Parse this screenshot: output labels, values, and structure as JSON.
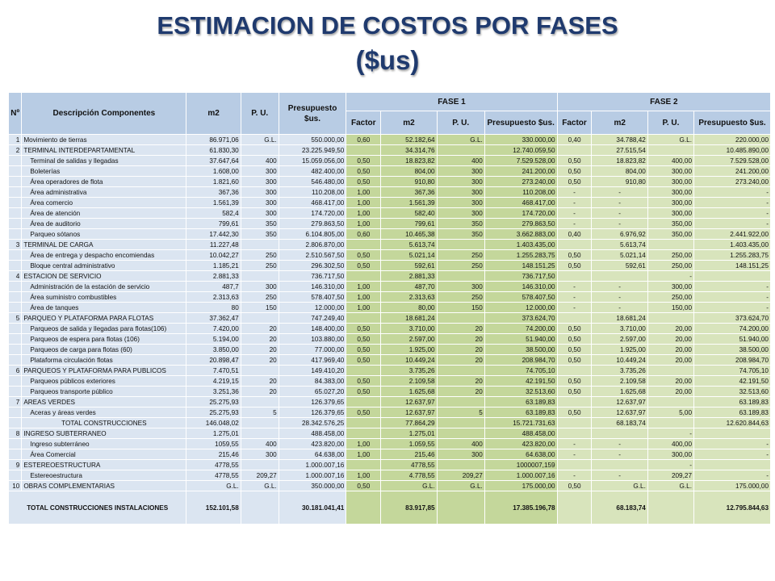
{
  "title": {
    "line1": "ESTIMACION DE COSTOS POR FASES",
    "line2": "($us)"
  },
  "headers": {
    "num": "Nº",
    "desc": "Descripción Componentes",
    "m2": "m2",
    "pu": "P. U.",
    "pres": "Presupuesto $us.",
    "fase1": "FASE 1",
    "fase2": "FASE 2",
    "factor": "Factor"
  },
  "rows": [
    {
      "type": "sect",
      "num": "1",
      "desc": "Movimiento de tierras",
      "m2": "86.971,06",
      "pu": "G.L.",
      "pres": "550.000,00",
      "f1": [
        "0,60",
        "52.182,64",
        "G.L.",
        "330.000,00"
      ],
      "f2": [
        "0,40",
        "34.788,42",
        "G.L.",
        "220.000,00"
      ]
    },
    {
      "type": "sect",
      "num": "2",
      "desc": "TERMINAL INTERDEPARTAMENTAL",
      "m2": "61.830,30",
      "pu": "",
      "pres": "23.225.949,50",
      "f1": [
        "",
        "34.314,76",
        "",
        "12.740.059,50"
      ],
      "f2": [
        "",
        "27.515,54",
        "",
        "10.485.890,00"
      ]
    },
    {
      "type": "sub",
      "num": "",
      "desc": "Terminal de salidas y llegadas",
      "m2": "37.647,64",
      "pu": "400",
      "pres": "15.059.056,00",
      "f1": [
        "0,50",
        "18.823,82",
        "400",
        "7.529.528,00"
      ],
      "f2": [
        "0,50",
        "18.823,82",
        "400,00",
        "7.529.528,00"
      ]
    },
    {
      "type": "sub",
      "num": "",
      "desc": "Boleterías",
      "m2": "1.608,00",
      "pu": "300",
      "pres": "482.400,00",
      "f1": [
        "0,50",
        "804,00",
        "300",
        "241.200,00"
      ],
      "f2": [
        "0,50",
        "804,00",
        "300,00",
        "241.200,00"
      ]
    },
    {
      "type": "sub",
      "num": "",
      "desc": "Área operadores de flota",
      "m2": "1.821,60",
      "pu": "300",
      "pres": "546.480,00",
      "f1": [
        "0,50",
        "910,80",
        "300",
        "273.240,00"
      ],
      "f2": [
        "0,50",
        "910,80",
        "300,00",
        "273.240,00"
      ]
    },
    {
      "type": "sub",
      "num": "",
      "desc": "Área administrativa",
      "m2": "367,36",
      "pu": "300",
      "pres": "110.208,00",
      "f1": [
        "1,00",
        "367,36",
        "300",
        "110.208,00"
      ],
      "f2": [
        "-",
        "-",
        "300,00",
        "-"
      ]
    },
    {
      "type": "sub",
      "num": "",
      "desc": "Área comercio",
      "m2": "1.561,39",
      "pu": "300",
      "pres": "468.417,00",
      "f1": [
        "1,00",
        "1.561,39",
        "300",
        "468.417,00"
      ],
      "f2": [
        "-",
        "-",
        "300,00",
        "-"
      ]
    },
    {
      "type": "sub",
      "num": "",
      "desc": "Área de atención",
      "m2": "582,4",
      "pu": "300",
      "pres": "174.720,00",
      "f1": [
        "1,00",
        "582,40",
        "300",
        "174.720,00"
      ],
      "f2": [
        "-",
        "-",
        "300,00",
        "-"
      ]
    },
    {
      "type": "sub",
      "num": "",
      "desc": "Área de auditorio",
      "m2": "799,61",
      "pu": "350",
      "pres": "279.863,50",
      "f1": [
        "1,00",
        "799,61",
        "350",
        "279.863,50"
      ],
      "f2": [
        "-",
        "-",
        "350,00",
        "-"
      ]
    },
    {
      "type": "sub",
      "num": "",
      "desc": "Parqueo sótanos",
      "m2": "17.442,30",
      "pu": "350",
      "pres": "6.104.805,00",
      "f1": [
        "0,60",
        "10.465,38",
        "350",
        "3.662.883,00"
      ],
      "f2": [
        "0,40",
        "6.976,92",
        "350,00",
        "2.441.922,00"
      ]
    },
    {
      "type": "sect",
      "num": "3",
      "desc": "TERMINAL DE CARGA",
      "m2": "11.227,48",
      "pu": "",
      "pres": "2.806.870,00",
      "f1": [
        "",
        "5.613,74",
        "",
        "1.403.435,00"
      ],
      "f2": [
        "",
        "5.613,74",
        "",
        "1.403.435,00"
      ]
    },
    {
      "type": "sub",
      "num": "",
      "desc": "Área de entrega y despacho encomiendas",
      "m2": "10.042,27",
      "pu": "250",
      "pres": "2.510.567,50",
      "f1": [
        "0,50",
        "5.021,14",
        "250",
        "1.255.283,75"
      ],
      "f2": [
        "0,50",
        "5.021,14",
        "250,00",
        "1.255.283,75"
      ]
    },
    {
      "type": "sub",
      "num": "",
      "desc": "Bloque central administrativo",
      "m2": "1.185,21",
      "pu": "250",
      "pres": "296.302,50",
      "f1": [
        "0,50",
        "592,61",
        "250",
        "148.151,25"
      ],
      "f2": [
        "0,50",
        "592,61",
        "250,00",
        "148.151,25"
      ]
    },
    {
      "type": "sect",
      "num": "4",
      "desc": "ESTACION DE SERVICIO",
      "m2": "2.881,33",
      "pu": "",
      "pres": "736.717,50",
      "f1": [
        "",
        "2.881,33",
        "",
        "736.717,50"
      ],
      "f2": [
        "",
        "",
        "-",
        ""
      ]
    },
    {
      "type": "sub",
      "num": "",
      "desc": "Administración de la estación de servicio",
      "m2": "487,7",
      "pu": "300",
      "pres": "146.310,00",
      "f1": [
        "1,00",
        "487,70",
        "300",
        "146.310,00"
      ],
      "f2": [
        "-",
        "-",
        "300,00",
        "-"
      ]
    },
    {
      "type": "sub",
      "num": "",
      "desc": "Área suministro combustibles",
      "m2": "2.313,63",
      "pu": "250",
      "pres": "578.407,50",
      "f1": [
        "1,00",
        "2.313,63",
        "250",
        "578.407,50"
      ],
      "f2": [
        "-",
        "-",
        "250,00",
        "-"
      ]
    },
    {
      "type": "sub",
      "num": "",
      "desc": "Área de tanques",
      "m2": "80",
      "pu": "150",
      "pres": "12.000,00",
      "f1": [
        "1,00",
        "80,00",
        "150",
        "12.000,00"
      ],
      "f2": [
        "-",
        "-",
        "150,00",
        "-"
      ]
    },
    {
      "type": "sect",
      "num": "5",
      "desc": "PARQUEO Y PLATAFORMA PARA FLOTAS",
      "m2": "37.362,47",
      "pu": "",
      "pres": "747.249,40",
      "f1": [
        "",
        "18.681,24",
        "",
        "373.624,70"
      ],
      "f2": [
        "",
        "18.681,24",
        "",
        "373.624,70"
      ]
    },
    {
      "type": "sub",
      "num": "",
      "desc": "Parqueos de salida y llegadas para flotas(106)",
      "m2": "7.420,00",
      "pu": "20",
      "pres": "148.400,00",
      "f1": [
        "0,50",
        "3.710,00",
        "20",
        "74.200,00"
      ],
      "f2": [
        "0,50",
        "3.710,00",
        "20,00",
        "74.200,00"
      ]
    },
    {
      "type": "sub",
      "num": "",
      "desc": "Parqueos de espera para flotas (106)",
      "m2": "5.194,00",
      "pu": "20",
      "pres": "103.880,00",
      "f1": [
        "0,50",
        "2.597,00",
        "20",
        "51.940,00"
      ],
      "f2": [
        "0,50",
        "2.597,00",
        "20,00",
        "51.940,00"
      ]
    },
    {
      "type": "sub",
      "num": "",
      "desc": "Parqueos de carga para flotas (60)",
      "m2": "3.850,00",
      "pu": "20",
      "pres": "77.000,00",
      "f1": [
        "0,50",
        "1.925,00",
        "20",
        "38.500,00"
      ],
      "f2": [
        "0,50",
        "1.925,00",
        "20,00",
        "38.500,00"
      ]
    },
    {
      "type": "sub",
      "num": "",
      "desc": "Plataforma circulación flotas",
      "m2": "20.898,47",
      "pu": "20",
      "pres": "417.969,40",
      "f1": [
        "0,50",
        "10.449,24",
        "20",
        "208.984,70"
      ],
      "f2": [
        "0,50",
        "10.449,24",
        "20,00",
        "208.984,70"
      ]
    },
    {
      "type": "sect",
      "num": "6",
      "desc": "PARQUEOS Y PLATAFORMA PARA PUBLICOS",
      "m2": "7.470,51",
      "pu": "",
      "pres": "149.410,20",
      "f1": [
        "",
        "3.735,26",
        "",
        "74.705,10"
      ],
      "f2": [
        "",
        "3.735,26",
        "",
        "74.705,10"
      ]
    },
    {
      "type": "sub",
      "num": "",
      "desc": "Parqueos públicos exteriores",
      "m2": "4.219,15",
      "pu": "20",
      "pres": "84.383,00",
      "f1": [
        "0,50",
        "2.109,58",
        "20",
        "42.191,50"
      ],
      "f2": [
        "0,50",
        "2.109,58",
        "20,00",
        "42.191,50"
      ]
    },
    {
      "type": "sub",
      "num": "",
      "desc": "Parqueos transporte público",
      "m2": "3.251,36",
      "pu": "20",
      "pres": "65.027,20",
      "f1": [
        "0,50",
        "1.625,68",
        "20",
        "32.513,60"
      ],
      "f2": [
        "0,50",
        "1.625,68",
        "20,00",
        "32.513,60"
      ]
    },
    {
      "type": "sect",
      "num": "7",
      "desc": "AREAS VERDES",
      "m2": "25.275,93",
      "pu": "",
      "pres": "126.379,65",
      "f1": [
        "",
        "12.637,97",
        "",
        "63.189,83"
      ],
      "f2": [
        "",
        "12.637,97",
        "",
        "63.189,83"
      ]
    },
    {
      "type": "sub",
      "num": "",
      "desc": "Aceras y áreas verdes",
      "m2": "25.275,93",
      "pu": "5",
      "pres": "126.379,65",
      "f1": [
        "0,50",
        "12.637,97",
        "5",
        "63.189,83"
      ],
      "f2": [
        "0,50",
        "12.637,97",
        "5,00",
        "63.189,83"
      ]
    },
    {
      "type": "totc",
      "num": "",
      "desc": "TOTAL CONSTRUCCIONES",
      "m2": "146.048,02",
      "pu": "",
      "pres": "28.342.576,25",
      "f1": [
        "",
        "77.864,29",
        "",
        "15.721.731,63"
      ],
      "f2": [
        "",
        "68.183,74",
        "",
        "12.620.844,63"
      ]
    },
    {
      "type": "sect",
      "num": "8",
      "desc": "INGRESO SUBTERRANEO",
      "m2": "1.275,01",
      "pu": "",
      "pres": "488.458,00",
      "f1": [
        "",
        "1.275,01",
        "",
        "488.458,00"
      ],
      "f2": [
        "",
        "",
        "-",
        ""
      ]
    },
    {
      "type": "sub",
      "num": "",
      "desc": "Ingreso subterráneo",
      "m2": "1059,55",
      "pu": "400",
      "pres": "423.820,00",
      "f1": [
        "1,00",
        "1.059,55",
        "400",
        "423.820,00"
      ],
      "f2": [
        "-",
        "-",
        "400,00",
        "-"
      ]
    },
    {
      "type": "sub",
      "num": "",
      "desc": "Área Comercial",
      "m2": "215,46",
      "pu": "300",
      "pres": "64.638,00",
      "f1": [
        "1,00",
        "215,46",
        "300",
        "64.638,00"
      ],
      "f2": [
        "-",
        "-",
        "300,00",
        "-"
      ]
    },
    {
      "type": "sect",
      "num": "9",
      "desc": "ESTEREOESTRUCTURA",
      "m2": "4778,55",
      "pu": "",
      "pres": "1.000.007,16",
      "f1": [
        "",
        "4778,55",
        "",
        "1000007,159"
      ],
      "f2": [
        "",
        "",
        "-",
        ""
      ]
    },
    {
      "type": "sub",
      "num": "",
      "desc": "Estereoestructura",
      "m2": "4778,55",
      "pu": "209,27",
      "pres": "1.000.007,16",
      "f1": [
        "1,00",
        "4.778,55",
        "209,27",
        "1.000.007,16"
      ],
      "f2": [
        "-",
        "-",
        "209,27",
        "-"
      ]
    },
    {
      "type": "sect",
      "num": "10",
      "desc": "OBRAS COMPLEMENTARIAS",
      "m2": "G.L.",
      "pu": "G.L.",
      "pres": "350.000,00",
      "f1": [
        "0,50",
        "G.L.",
        "G.L.",
        "175.000,00"
      ],
      "f2": [
        "0,50",
        "G.L.",
        "G.L.",
        "175.000,00"
      ]
    }
  ],
  "total": {
    "desc": "TOTAL CONSTRUCCIONES INSTALACIONES",
    "m2": "152.101,58",
    "pu": "",
    "pres": "30.181.041,41",
    "f1": [
      "",
      "83.917,85",
      "",
      "17.385.196,78"
    ],
    "f2": [
      "",
      "68.183,74",
      "",
      "12.795.844,63"
    ]
  },
  "colors": {
    "title": "#1f3a6e",
    "header": "#b8cce4",
    "body": "#dbe5f1",
    "fase1": "#c4d79b",
    "fase2": "#d8e4bc"
  }
}
